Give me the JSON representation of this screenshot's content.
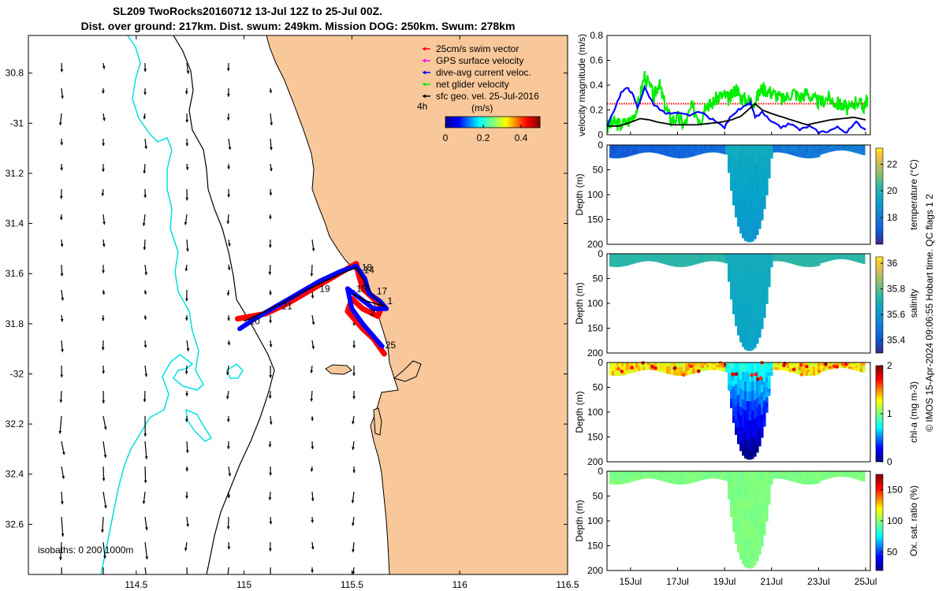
{
  "chart_data": {
    "type": "map_with_section_plots",
    "title_line1": "SL209 TwoRocks20160712 13-Jul 12Z to 25-Jul 00Z.",
    "title_line2": "Dist. over ground: 217km. Dist. swum: 249km. Mission DOG: 250km. Swum: 278km",
    "map": {
      "lon_ticks": [
        "114.5",
        "115",
        "115.5",
        "116",
        "116.5"
      ],
      "lat_ticks": [
        "30.8",
        "-31",
        "31.2",
        "31.4",
        "31.6",
        "31.8",
        "-32",
        "32.2",
        "32.4",
        "32.6"
      ],
      "lon_range": [
        114.0,
        116.5
      ],
      "lat_range": [
        -32.8,
        -30.65
      ],
      "isobaths_label": "isobaths: 0   200  1000m",
      "legend": [
        {
          "label": "25cm/s swim vector",
          "color": "#ff0000"
        },
        {
          "label": "GPS surface velocity",
          "color": "#ff00ff"
        },
        {
          "label": "dive-avg current veloc.",
          "color": "#0000ff"
        },
        {
          "label": "net glider velocity",
          "color": "#00ee00"
        },
        {
          "label": "sfc geo. vel. 25-Jul-2016",
          "color": "#000000"
        }
      ],
      "speed_colorbar": {
        "unit_label": "(m/s)",
        "time_label": "4h",
        "ticks": [
          "0",
          "0.2",
          "0.4"
        ],
        "range": [
          0,
          0.5
        ]
      },
      "day_labels": [
        {
          "text": "18",
          "lon": 115.545,
          "lat": -31.575
        },
        {
          "text": "14",
          "lon": 115.555,
          "lat": -31.585
        },
        {
          "text": "19",
          "lon": 115.35,
          "lat": -31.66
        },
        {
          "text": "15",
          "lon": 115.52,
          "lat": -31.66
        },
        {
          "text": "17",
          "lon": 115.615,
          "lat": -31.67
        },
        {
          "text": "1",
          "lon": 115.665,
          "lat": -31.71
        },
        {
          "text": "21",
          "lon": 115.175,
          "lat": -31.73
        },
        {
          "text": "2",
          "lon": 115.585,
          "lat": -31.755
        },
        {
          "text": "20",
          "lon": 115.025,
          "lat": -31.79
        },
        {
          "text": "25",
          "lon": 115.655,
          "lat": -31.885
        }
      ],
      "track_red": [
        [
          114.97,
          -31.78
        ],
        [
          115.1,
          -31.76
        ],
        [
          115.2,
          -31.72
        ],
        [
          115.3,
          -31.67
        ],
        [
          115.4,
          -31.62
        ],
        [
          115.48,
          -31.58
        ],
        [
          115.52,
          -31.56
        ],
        [
          115.53,
          -31.6
        ],
        [
          115.55,
          -31.66
        ],
        [
          115.6,
          -31.7
        ],
        [
          115.64,
          -31.73
        ],
        [
          115.62,
          -31.77
        ],
        [
          115.55,
          -31.74
        ],
        [
          115.5,
          -31.7
        ],
        [
          115.48,
          -31.75
        ],
        [
          115.55,
          -31.82
        ],
        [
          115.6,
          -31.86
        ],
        [
          115.65,
          -31.92
        ]
      ],
      "track_blue": [
        [
          114.98,
          -31.82
        ],
        [
          115.05,
          -31.78
        ],
        [
          115.15,
          -31.73
        ],
        [
          115.25,
          -31.68
        ],
        [
          115.35,
          -31.63
        ],
        [
          115.45,
          -31.59
        ],
        [
          115.52,
          -31.57
        ],
        [
          115.56,
          -31.62
        ],
        [
          115.58,
          -31.68
        ],
        [
          115.63,
          -31.71
        ],
        [
          115.66,
          -31.74
        ],
        [
          115.6,
          -31.74
        ],
        [
          115.54,
          -31.7
        ],
        [
          115.48,
          -31.66
        ],
        [
          115.5,
          -31.74
        ],
        [
          115.55,
          -31.8
        ],
        [
          115.6,
          -31.85
        ],
        [
          115.64,
          -31.89
        ]
      ],
      "track_black": [
        [
          115.0,
          -31.79
        ],
        [
          115.15,
          -31.73
        ],
        [
          115.3,
          -31.66
        ],
        [
          115.45,
          -31.6
        ],
        [
          115.52,
          -31.575
        ],
        [
          115.55,
          -31.62
        ],
        [
          115.6,
          -31.69
        ],
        [
          115.65,
          -31.73
        ],
        [
          115.57,
          -31.71
        ],
        [
          115.5,
          -31.68
        ]
      ]
    },
    "velocity_panel": {
      "ylabel": "velocity magnitude (m/s)",
      "y_ticks": [
        "0",
        "0.2",
        "0.4",
        "0.6",
        "0.8"
      ],
      "ylim": [
        0,
        0.8
      ],
      "x_day_range": [
        14,
        25.2
      ],
      "series": [
        {
          "name": "net glider velocity",
          "color": "#00ee00",
          "x": [
            14.0,
            14.3,
            14.6,
            15.0,
            15.3,
            15.6,
            16.0,
            16.2,
            16.4,
            16.7,
            17.0,
            17.3,
            17.6,
            18.0,
            18.2,
            18.4,
            18.7,
            19.0,
            19.2,
            19.5,
            19.7,
            20.0,
            20.3,
            20.6,
            20.9,
            21.2,
            21.5,
            21.9,
            22.2,
            22.5,
            22.8,
            23.1,
            23.4,
            23.7,
            24.0,
            24.3,
            24.6,
            24.9,
            25.1
          ],
          "y": [
            0.06,
            0.1,
            0.08,
            0.12,
            0.22,
            0.48,
            0.3,
            0.42,
            0.28,
            0.12,
            0.14,
            0.08,
            0.22,
            0.12,
            0.26,
            0.24,
            0.3,
            0.32,
            0.28,
            0.38,
            0.3,
            0.28,
            0.27,
            0.38,
            0.35,
            0.32,
            0.28,
            0.35,
            0.3,
            0.34,
            0.28,
            0.26,
            0.3,
            0.26,
            0.24,
            0.2,
            0.28,
            0.22,
            0.3
          ]
        },
        {
          "name": "dive-avg current veloc.",
          "color": "#0000ff",
          "x": [
            14.0,
            14.3,
            14.6,
            14.9,
            15.1,
            15.3,
            15.6,
            16.0,
            16.5,
            17.0,
            17.5,
            18.0,
            18.5,
            19.0,
            19.3,
            19.6,
            19.9,
            20.1,
            20.3,
            20.6,
            21.0,
            21.4,
            21.8,
            22.2,
            22.6,
            23.0,
            23.4,
            23.8,
            24.2,
            24.6,
            25.0
          ],
          "y": [
            0.06,
            0.2,
            0.34,
            0.38,
            0.32,
            0.22,
            0.38,
            0.24,
            0.17,
            0.17,
            0.16,
            0.18,
            0.12,
            0.06,
            0.16,
            0.2,
            0.23,
            0.26,
            0.14,
            0.18,
            0.1,
            0.06,
            0.09,
            0.04,
            0.07,
            0.02,
            0.03,
            0.06,
            0.02,
            0.1,
            0.04
          ]
        },
        {
          "name": "sfc geo. vel.",
          "color": "#000000",
          "x": [
            14.0,
            14.5,
            15.0,
            15.4,
            15.8,
            16.2,
            16.8,
            17.3,
            17.8,
            18.3,
            18.8,
            19.3,
            19.7,
            20.0,
            20.3,
            20.6,
            21.0,
            21.5,
            22.0,
            22.5,
            23.0,
            23.5,
            24.0,
            24.5,
            25.0
          ],
          "y": [
            0.07,
            0.07,
            0.1,
            0.13,
            0.12,
            0.1,
            0.08,
            0.08,
            0.08,
            0.09,
            0.1,
            0.12,
            0.15,
            0.2,
            0.25,
            0.2,
            0.17,
            0.14,
            0.11,
            0.08,
            0.1,
            0.12,
            0.13,
            0.14,
            0.12
          ]
        }
      ],
      "red_swim_dashes_level": 0.25
    },
    "sections": [
      {
        "name": "temperature",
        "cbar_label": "temperature (°C)",
        "cbar_ticks": [
          "18",
          "20",
          "22"
        ],
        "cbar_range": [
          16,
          23.2
        ],
        "cmap": "parula",
        "shallow_value": 17.2,
        "deep_value": 19.6
      },
      {
        "name": "salinity",
        "cbar_label": "salinity",
        "cbar_ticks": [
          "35.4",
          "35.6",
          "35.8",
          "36"
        ],
        "cbar_range": [
          35.3,
          36.05
        ],
        "cmap": "parula",
        "shallow_value": 35.73,
        "deep_value": 35.66
      },
      {
        "name": "chl-a",
        "cbar_label": "chl-a (mg m-3)",
        "cbar_ticks": [
          "0",
          "1",
          "2"
        ],
        "cbar_range": [
          0,
          2
        ],
        "cmap": "jet",
        "shallow_value": 1.35,
        "deep_value": 0.45
      },
      {
        "name": "oxygen",
        "cbar_label": "Ox. sat. ratio (%)",
        "cbar_ticks": [
          "50",
          "100",
          "150"
        ],
        "cbar_range": [
          20,
          175
        ],
        "cmap": "jet",
        "shallow_value": 97,
        "deep_value": 95
      }
    ],
    "section_ylabel": "Depth (m)",
    "depth_ticks": [
      "0",
      "50",
      "100",
      "150",
      "200"
    ],
    "depth_range": [
      0,
      200
    ],
    "time_ticks": [
      "15Jul",
      "17Jul",
      "19Jul",
      "21Jul",
      "23Jul",
      "25Jul"
    ],
    "time_tick_days": [
      15,
      17,
      19,
      21,
      23,
      25
    ],
    "deep_dive_days": [
      19.0,
      21.0
    ],
    "credit": "© IMOS 15-Apr-2024 09:06:55 Hobart time. QC flags 1  2"
  }
}
